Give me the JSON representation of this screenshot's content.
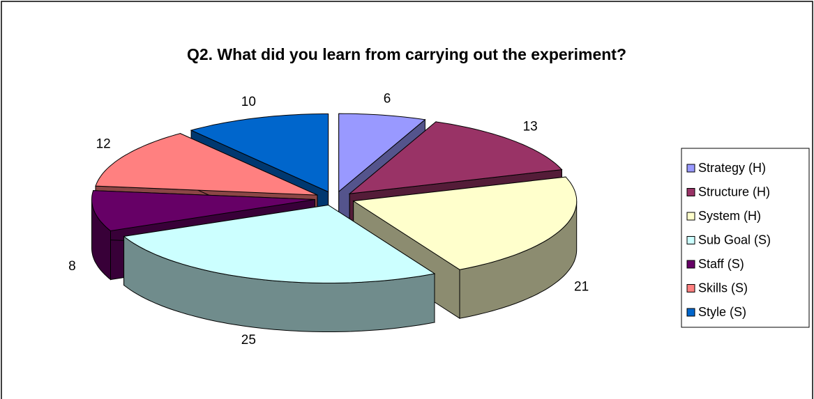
{
  "chart_data": {
    "type": "pie3d",
    "title": "Q2. What did you learn from carrying out the experiment?",
    "categories": [
      "Strategy (H)",
      "Structure (H)",
      "System (H)",
      "Sub Goal (S)",
      "Staff (S)",
      "Skills (S)",
      "Style (S)"
    ],
    "values": [
      6,
      13,
      21,
      25,
      8,
      12,
      10
    ],
    "colors": [
      "#9999ff",
      "#993366",
      "#ffffcc",
      "#ccffff",
      "#660066",
      "#ff8080",
      "#0066cc"
    ],
    "legend": "right"
  }
}
